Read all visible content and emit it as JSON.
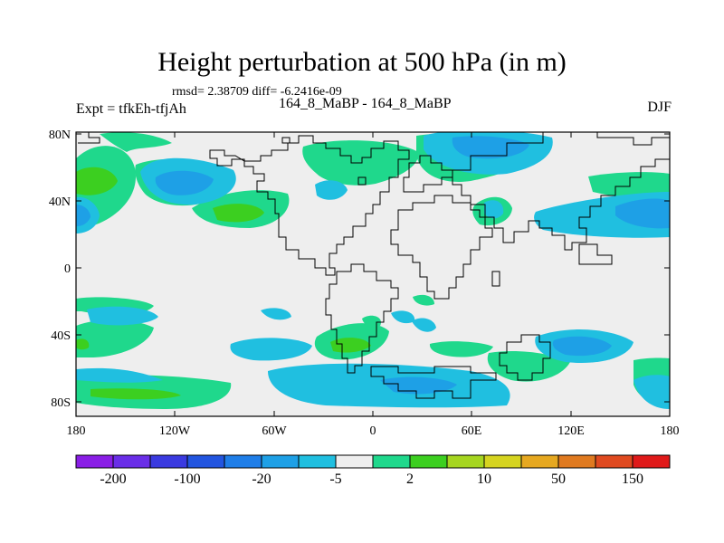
{
  "title": "Height perturbation at 500 hPa (in m)",
  "subtitle": "rmsd= 2.38709 diff= -6.2416e-09",
  "left_label": "Expt = tfkEh-tfjAh",
  "center_label": "164_8_MaBP - 164_8_MaBP",
  "right_label": "DJF",
  "map": {
    "lat_ticks": [
      "80N",
      "40N",
      "0",
      "40S",
      "80S"
    ],
    "lon_ticks": [
      "180",
      "120W",
      "60W",
      "0",
      "60E",
      "120E",
      "180"
    ]
  },
  "colorbar": {
    "colors": [
      "#8a1ee6",
      "#6a2ee8",
      "#3a3ae0",
      "#2255e0",
      "#1f7ee8",
      "#1ea0e6",
      "#20bfe0",
      "#eeeeee",
      "#1fd88c",
      "#3ccf20",
      "#a6d620",
      "#d6d420",
      "#e6a820",
      "#e07a20",
      "#e04a20",
      "#e01a1a"
    ],
    "labels": [
      "-200",
      "-100",
      "-20",
      "-5",
      "2",
      "10",
      "50",
      "150"
    ]
  }
}
